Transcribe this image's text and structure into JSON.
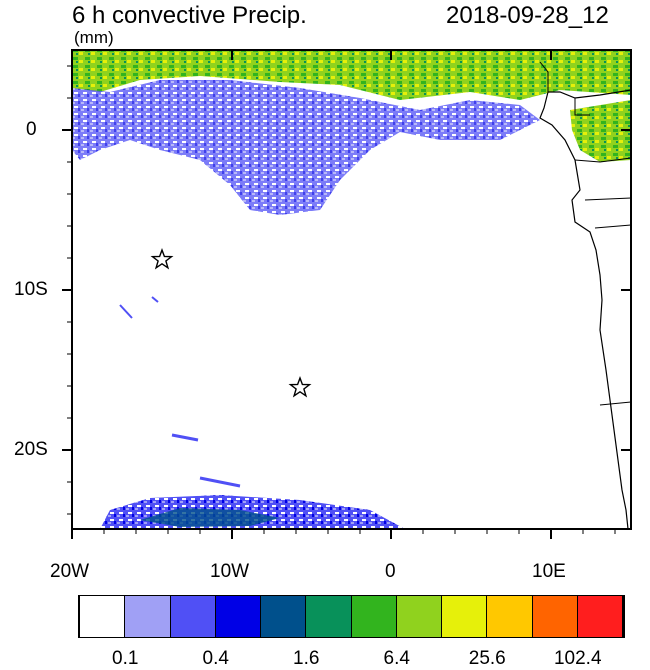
{
  "header": {
    "title": "6 h convective Precip.",
    "date": "2018-09-28_12",
    "units": "(mm)"
  },
  "axes": {
    "x_ticks": [
      "20W",
      "10W",
      "0",
      "10E"
    ],
    "y_ticks": [
      "0",
      "10S",
      "20S"
    ]
  },
  "colorbar": {
    "colors": [
      "#ffffff",
      "#a0a0f5",
      "#5050f5",
      "#0000e6",
      "#00508c",
      "#08915a",
      "#32b41e",
      "#90d21e",
      "#e6f00a",
      "#ffc800",
      "#ff6400",
      "#ff1e1e"
    ],
    "labels": [
      "0.1",
      "0.4",
      "1.6",
      "6.4",
      "25.6",
      "102.4"
    ]
  },
  "markers": {
    "icon": "star-icon",
    "count": 2
  }
}
